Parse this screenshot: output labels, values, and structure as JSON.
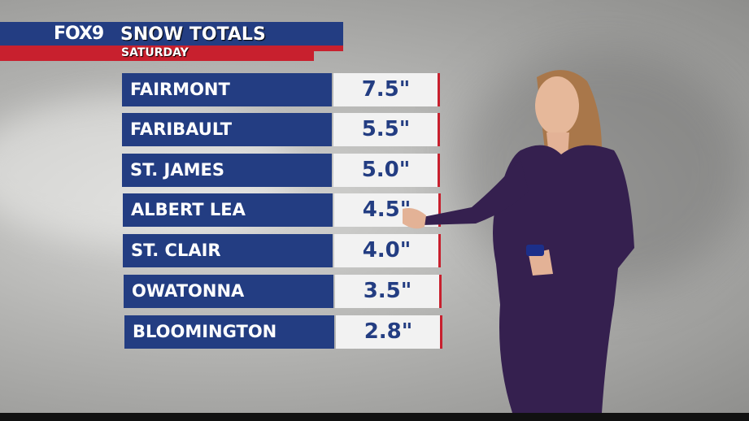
{
  "header": {
    "logo": "FOX9",
    "title": "SNOW TOTALS",
    "subtitle": "SATURDAY"
  },
  "colors": {
    "blue": "#233d82",
    "red": "#c8202e",
    "value_bg": "#f2f2f2"
  },
  "rows": [
    {
      "location": "FAIRMONT",
      "amount": "7.5\""
    },
    {
      "location": "FARIBAULT",
      "amount": "5.5\""
    },
    {
      "location": "ST. JAMES",
      "amount": "5.0\""
    },
    {
      "location": "ALBERT LEA",
      "amount": "4.5\""
    },
    {
      "location": "ST. CLAIR",
      "amount": "4.0\""
    },
    {
      "location": "OWATONNA",
      "amount": "3.5\""
    },
    {
      "location": "BLOOMINGTON",
      "amount": "2.8\""
    }
  ]
}
